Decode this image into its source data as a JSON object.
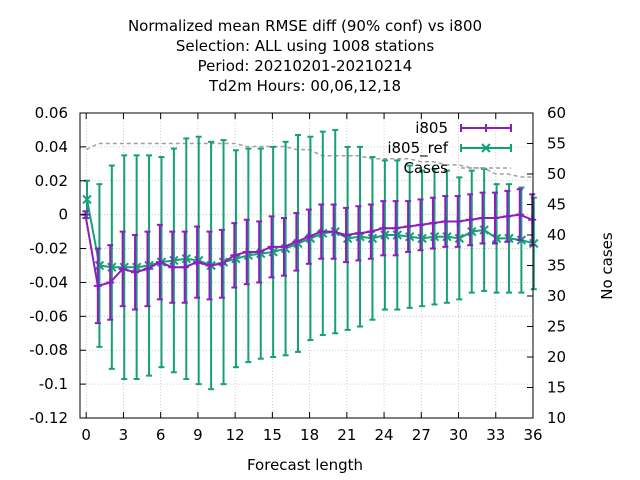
{
  "chart_data": {
    "type": "line",
    "title_lines": [
      "Normalized mean RMSE diff (90% conf) vs i800",
      "Selection: ALL using  1008 stations",
      "Period: 20210201-20210214",
      "Td2m   Hours:  00,06,12,18"
    ],
    "xlabel": "Forecast length",
    "ylabel": "",
    "y2label": "No cases",
    "xlim": [
      -0.5,
      36
    ],
    "ylim": [
      -0.12,
      0.06
    ],
    "y2lim": [
      10,
      60
    ],
    "x_ticks": [
      0,
      3,
      6,
      9,
      12,
      15,
      18,
      21,
      24,
      27,
      30,
      33,
      36
    ],
    "x_tick_labels": [
      "0",
      "3",
      "6",
      "9",
      "12",
      "15",
      "18",
      "21",
      "24",
      "27",
      "30",
      "33",
      "36"
    ],
    "y_ticks": [
      -0.12,
      -0.1,
      -0.08,
      -0.06,
      -0.04,
      -0.02,
      0,
      0.02,
      0.04,
      0.06
    ],
    "y_tick_labels": [
      "-0.12",
      "-0.1",
      "-0.08",
      "-0.06",
      "-0.04",
      "-0.02",
      "0",
      "0.02",
      "0.04",
      "0.06"
    ],
    "y2_ticks": [
      10,
      15,
      20,
      25,
      30,
      35,
      40,
      45,
      50,
      55,
      60
    ],
    "y2_tick_labels": [
      "10",
      "15",
      "20",
      "25",
      "30",
      "35",
      "40",
      "45",
      "50",
      "55",
      "60"
    ],
    "grid": true,
    "legend_position": "top-right",
    "x": [
      0,
      1,
      2,
      3,
      4,
      5,
      6,
      7,
      8,
      9,
      10,
      11,
      12,
      13,
      14,
      15,
      16,
      17,
      18,
      19,
      20,
      21,
      22,
      23,
      24,
      25,
      26,
      27,
      28,
      29,
      30,
      31,
      32,
      33,
      34,
      35,
      36
    ],
    "series": [
      {
        "name": "i805",
        "color": "#8b1fbe",
        "marker": "plus",
        "values": [
          0,
          -0.042,
          -0.04,
          -0.032,
          -0.034,
          -0.032,
          -0.028,
          -0.031,
          -0.031,
          -0.028,
          -0.03,
          -0.029,
          -0.024,
          -0.022,
          -0.022,
          -0.019,
          -0.019,
          -0.016,
          -0.013,
          -0.01,
          -0.01,
          -0.012,
          -0.011,
          -0.01,
          -0.008,
          -0.008,
          -0.007,
          -0.006,
          -0.005,
          -0.004,
          -0.004,
          -0.003,
          -0.002,
          -0.002,
          -0.001,
          0.0,
          -0.003
        ],
        "err_low": [
          -0.002,
          -0.064,
          -0.062,
          -0.054,
          -0.056,
          -0.054,
          -0.05,
          -0.052,
          -0.052,
          -0.049,
          -0.05,
          -0.049,
          -0.043,
          -0.041,
          -0.04,
          -0.037,
          -0.036,
          -0.033,
          -0.029,
          -0.026,
          -0.026,
          -0.028,
          -0.027,
          -0.026,
          -0.024,
          -0.024,
          -0.022,
          -0.021,
          -0.02,
          -0.019,
          -0.019,
          -0.018,
          -0.017,
          -0.017,
          -0.016,
          -0.015,
          -0.018
        ],
        "err_high": [
          0.002,
          -0.02,
          -0.018,
          -0.01,
          -0.012,
          -0.01,
          -0.006,
          -0.01,
          -0.01,
          -0.007,
          -0.01,
          -0.009,
          -0.005,
          -0.003,
          -0.004,
          -0.001,
          -0.002,
          0.001,
          0.003,
          0.006,
          0.006,
          0.004,
          0.005,
          0.006,
          0.008,
          0.008,
          0.008,
          0.009,
          0.01,
          0.011,
          0.011,
          0.012,
          0.013,
          0.013,
          0.014,
          0.015,
          0.012
        ]
      },
      {
        "name": "i805_ref",
        "color": "#14a078",
        "marker": "cross",
        "values": [
          0.009,
          -0.03,
          -0.031,
          -0.031,
          -0.031,
          -0.03,
          -0.028,
          -0.027,
          -0.026,
          -0.027,
          -0.03,
          -0.028,
          -0.026,
          -0.024,
          -0.023,
          -0.022,
          -0.02,
          -0.017,
          -0.014,
          -0.011,
          -0.01,
          -0.014,
          -0.013,
          -0.014,
          -0.012,
          -0.012,
          -0.013,
          -0.014,
          -0.013,
          -0.013,
          -0.014,
          -0.01,
          -0.009,
          -0.014,
          -0.014,
          -0.015,
          -0.017
        ],
        "err_low": [
          -0.002,
          -0.078,
          -0.091,
          -0.097,
          -0.097,
          -0.095,
          -0.09,
          -0.093,
          -0.097,
          -0.1,
          -0.103,
          -0.1,
          -0.09,
          -0.087,
          -0.085,
          -0.084,
          -0.083,
          -0.081,
          -0.074,
          -0.071,
          -0.07,
          -0.068,
          -0.066,
          -0.062,
          -0.056,
          -0.056,
          -0.055,
          -0.054,
          -0.053,
          -0.052,
          -0.05,
          -0.046,
          -0.045,
          -0.046,
          -0.046,
          -0.046,
          -0.044
        ],
        "err_high": [
          0.02,
          0.018,
          0.029,
          0.035,
          0.035,
          0.035,
          0.034,
          0.039,
          0.045,
          0.046,
          0.043,
          0.044,
          0.038,
          0.039,
          0.039,
          0.04,
          0.043,
          0.047,
          0.046,
          0.049,
          0.05,
          0.04,
          0.04,
          0.034,
          0.032,
          0.032,
          0.029,
          0.026,
          0.027,
          0.026,
          0.022,
          0.026,
          0.027,
          0.018,
          0.018,
          0.016,
          0.01
        ]
      },
      {
        "name": "Cases",
        "color": "#a0a0a0",
        "axis": "right",
        "style": "dashed",
        "values": [
          54,
          55,
          55,
          55,
          55,
          55,
          55,
          55,
          55,
          55,
          55,
          55,
          55,
          54.5,
          54.5,
          54.5,
          54.5,
          54,
          54,
          53,
          53,
          53,
          53,
          52.5,
          52.5,
          52.5,
          52.5,
          52,
          52,
          51.5,
          51.5,
          51,
          51,
          50,
          50,
          49.5,
          49.5
        ]
      }
    ]
  }
}
